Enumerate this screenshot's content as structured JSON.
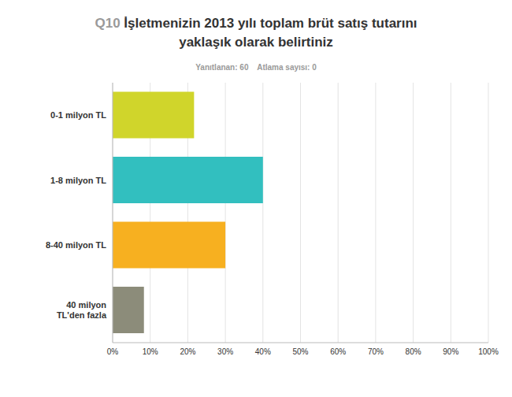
{
  "chart_data": {
    "type": "bar",
    "orientation": "horizontal",
    "title": "Q10 İşletmenizin 2013 yılı toplam brüt satış tutarını yaklaşık olarak belirtiniz",
    "subtitle": "Yanıtlanan: 60    Atlama sayısı: 0",
    "categories": [
      "0-1 milyon TL",
      "1-8 milyon TL",
      "8-40 milyon TL",
      "40 milyon TL'den fazla"
    ],
    "values": [
      21.67,
      40,
      30,
      8.33
    ],
    "colors": [
      "#d0d52b",
      "#32bfbf",
      "#f7b020",
      "#8c8c7a"
    ],
    "xlim": [
      0,
      100
    ],
    "xticks": [
      {
        "value": 0,
        "label": "0%"
      },
      {
        "value": 10,
        "label": "10%"
      },
      {
        "value": 20,
        "label": "20%"
      },
      {
        "value": 30,
        "label": "30%"
      },
      {
        "value": 40,
        "label": "40%"
      },
      {
        "value": 50,
        "label": "50%"
      },
      {
        "value": 60,
        "label": "60%"
      },
      {
        "value": 70,
        "label": "70%"
      },
      {
        "value": 80,
        "label": "80%"
      },
      {
        "value": 90,
        "label": "90%"
      },
      {
        "value": 100,
        "label": "100%"
      }
    ],
    "grid": true
  }
}
